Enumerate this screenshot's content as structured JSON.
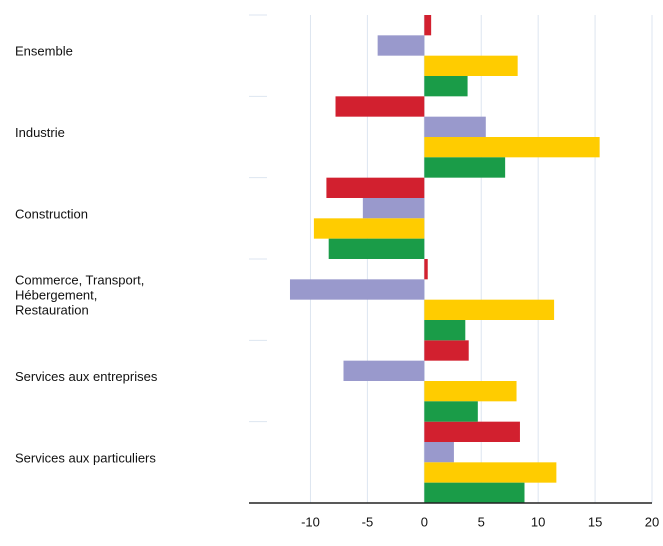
{
  "chart_data": {
    "type": "bar",
    "orientation": "horizontal",
    "categories": [
      "Ensemble",
      "Industrie",
      "Construction",
      "Commerce, Transport,\nHébergement,\nRestauration",
      "Services aux entreprises",
      "Services aux particuliers"
    ],
    "series": [
      {
        "color": "#d2202f",
        "values": [
          0.6,
          -7.8,
          -8.6,
          0.3,
          3.9,
          8.4
        ]
      },
      {
        "color": "#9999cc",
        "values": [
          -4.1,
          5.4,
          -5.4,
          -11.8,
          -7.1,
          2.6
        ]
      },
      {
        "color": "#ffcc00",
        "values": [
          8.2,
          15.4,
          -9.7,
          11.4,
          8.1,
          11.6
        ]
      },
      {
        "color": "#1a9c48",
        "values": [
          3.8,
          7.1,
          -8.4,
          3.6,
          4.7,
          8.8
        ]
      }
    ],
    "xlim": [
      -15.4,
      20
    ],
    "xticks": [
      -10,
      -5,
      0,
      5,
      10,
      15,
      20
    ],
    "grid": true
  }
}
